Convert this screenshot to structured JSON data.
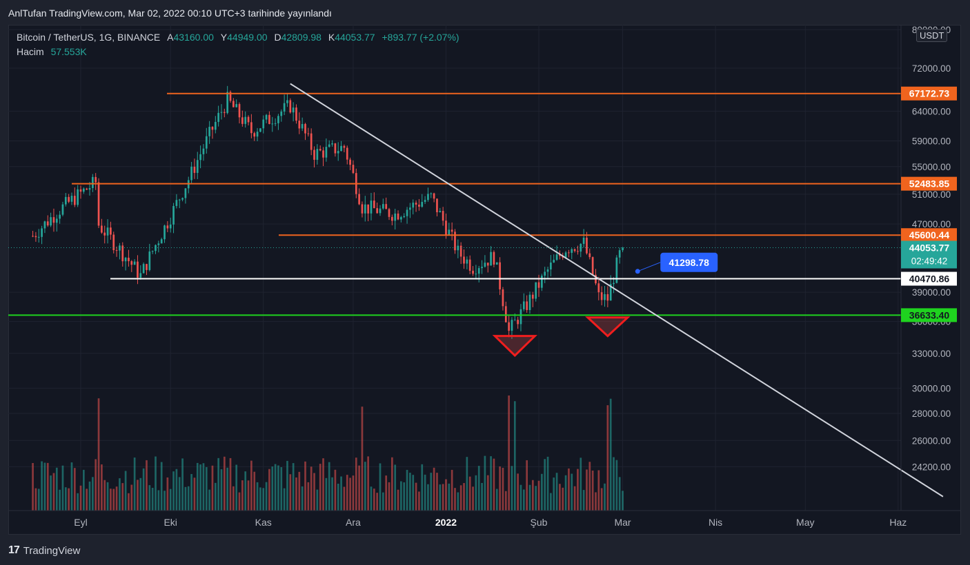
{
  "header": {
    "published_line": "AnlTufan TradingView.com, Mar 02, 2022 00:10 UTC+3 tarihinde yayınlandı"
  },
  "legend": {
    "symbol": "Bitcoin / TetherUS, 1G, BINANCE",
    "open_label": "A",
    "open": "43160.00",
    "high_label": "Y",
    "high": "44949.00",
    "low_label": "D",
    "low": "42809.98",
    "close_label": "K",
    "close": "44053.77",
    "change": "+893.77 (+2.07%)",
    "volume_label": "Hacim",
    "volume": "57.553K"
  },
  "currency": "USDT",
  "footer": {
    "brand": "TradingView",
    "logo": "17"
  },
  "colors": {
    "background": "#131722",
    "up": "#26a69a",
    "down": "#ef5350",
    "resistance": "#f0641e",
    "support_white": "#ffffff",
    "support_green": "#1fd31f",
    "trendline": "#d1d4dc",
    "callout": "#2962ff"
  },
  "chart_data": {
    "type": "candlestick",
    "title": "Bitcoin / TetherUS, 1G, BINANCE",
    "x_axis_labels": [
      "Eyl",
      "Eki",
      "Kas",
      "Ara",
      "2022",
      "Şub",
      "Mar",
      "Nis",
      "May",
      "Haz"
    ],
    "y_axis_ticks": [
      "80000.00",
      "72000.00",
      "64000.00",
      "59000.00",
      "55000.00",
      "51000.00",
      "47000.00",
      "39000.00",
      "36000.00",
      "33000.00",
      "30000.00",
      "28000.00",
      "26000.00",
      "24200.00"
    ],
    "y_scale": "log",
    "ylim": [
      22500,
      80000
    ],
    "horizontal_levels": [
      {
        "value": 67172.73,
        "label": "67172.73",
        "color": "orange"
      },
      {
        "value": 52483.85,
        "label": "52483.85",
        "color": "orange"
      },
      {
        "value": 45600.44,
        "label": "45600.44",
        "color": "orange"
      },
      {
        "value": 40470.86,
        "label": "40470.86",
        "color": "white"
      },
      {
        "value": 36633.4,
        "label": "36633.40",
        "color": "green"
      }
    ],
    "last_price": {
      "value": 44053.77,
      "label": "44053.77",
      "countdown": "02:49:42"
    },
    "callout": {
      "value": 41298.78,
      "label": "41298.78"
    },
    "trendline": [
      {
        "date": "2021-11-10",
        "price": 69000
      },
      {
        "date": "2022-06-16",
        "price": 22300
      }
    ],
    "pattern_markers": [
      {
        "type": "down-triangle",
        "date": "2022-01-24",
        "top": 34600,
        "tip": 32800
      },
      {
        "type": "down-triangle",
        "date": "2022-02-24",
        "top": 36400,
        "tip": 34600
      }
    ],
    "series": [
      {
        "name": "price",
        "points": [
          {
            "date": "2021-08-16",
            "price": 45500
          },
          {
            "date": "2021-08-25",
            "price": 48900
          },
          {
            "date": "2021-09-06",
            "price": 52700
          },
          {
            "date": "2021-09-07",
            "price": 46900
          },
          {
            "date": "2021-09-21",
            "price": 40800
          },
          {
            "date": "2021-10-01",
            "price": 48000
          },
          {
            "date": "2021-10-08",
            "price": 54000
          },
          {
            "date": "2021-10-20",
            "price": 66000
          },
          {
            "date": "2021-10-28",
            "price": 60500
          },
          {
            "date": "2021-11-10",
            "price": 65000
          },
          {
            "date": "2021-11-18",
            "price": 57000
          },
          {
            "date": "2021-11-28",
            "price": 58000
          },
          {
            "date": "2021-12-04",
            "price": 49300
          },
          {
            "date": "2021-12-15",
            "price": 48300
          },
          {
            "date": "2021-12-27",
            "price": 50600
          },
          {
            "date": "2022-01-05",
            "price": 43500
          },
          {
            "date": "2022-01-10",
            "price": 41800
          },
          {
            "date": "2022-01-17",
            "price": 43000
          },
          {
            "date": "2022-01-22",
            "price": 35000
          },
          {
            "date": "2022-01-28",
            "price": 37700
          },
          {
            "date": "2022-02-04",
            "price": 41400
          },
          {
            "date": "2022-02-10",
            "price": 44000
          },
          {
            "date": "2022-02-16",
            "price": 44600
          },
          {
            "date": "2022-02-21",
            "price": 38500
          },
          {
            "date": "2022-02-24",
            "price": 38300
          },
          {
            "date": "2022-02-28",
            "price": 43200
          },
          {
            "date": "2022-03-01",
            "price": 44053.77
          }
        ]
      },
      {
        "name": "volume",
        "shape": "daily bars, spikes near 2021-09-07, 2021-12-04, 2022-01-22 and 2022-02-24"
      }
    ]
  }
}
